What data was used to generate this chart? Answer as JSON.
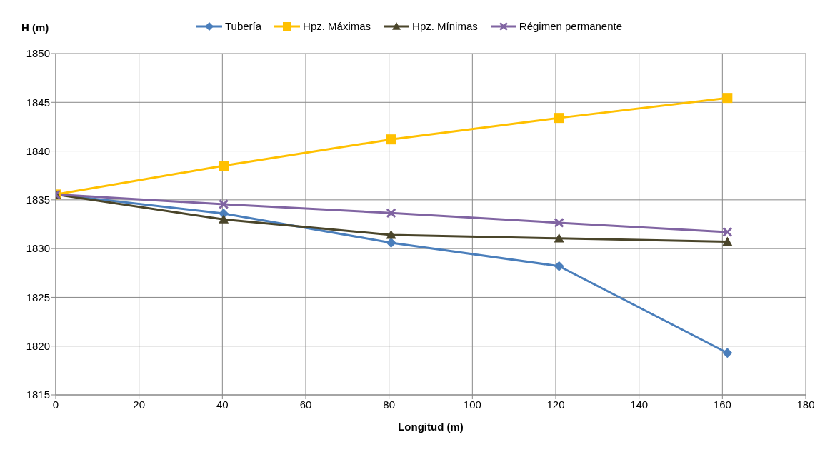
{
  "chart_data": {
    "type": "line",
    "ylabel": "H (m)",
    "xlabel": "Longitud (m)",
    "xlim": [
      0,
      180
    ],
    "xticks": [
      0,
      20,
      40,
      60,
      80,
      100,
      120,
      140,
      160,
      180
    ],
    "ylim": [
      1815,
      1850
    ],
    "yticks": [
      1815,
      1820,
      1825,
      1830,
      1835,
      1840,
      1845,
      1850
    ],
    "grid": true,
    "legend": "top",
    "series": [
      {
        "name": "Tubería",
        "color": "#4a7ebb",
        "marker": "diamond",
        "x": [
          0,
          40.3,
          80.5,
          120.8,
          161.2
        ],
        "values": [
          1835.55,
          1833.6,
          1830.6,
          1828.2,
          1819.3
        ]
      },
      {
        "name": "Hpz. Máximas",
        "color": "#ffc000",
        "marker": "square",
        "x": [
          0,
          40.3,
          80.5,
          120.8,
          161.2
        ],
        "values": [
          1835.55,
          1838.5,
          1841.2,
          1843.4,
          1845.45
        ]
      },
      {
        "name": "Hpz. Mínimas",
        "color": "#4a452a",
        "marker": "triangle",
        "x": [
          0,
          40.3,
          80.5,
          120.8,
          161.2
        ],
        "values": [
          1835.55,
          1833.0,
          1831.4,
          1831.05,
          1830.7
        ]
      },
      {
        "name": "Régimen permanente",
        "color": "#8064a2",
        "marker": "cross",
        "x": [
          0,
          40.3,
          80.5,
          120.8,
          161.2
        ],
        "values": [
          1835.55,
          1834.55,
          1833.65,
          1832.65,
          1831.7
        ]
      }
    ]
  }
}
